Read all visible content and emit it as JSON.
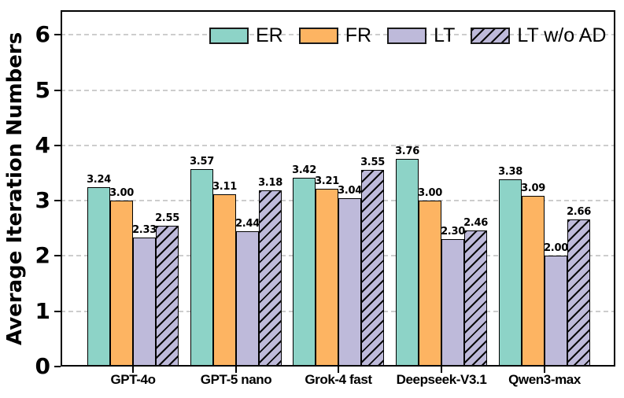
{
  "chart_data": {
    "type": "bar",
    "title": "",
    "xlabel": "",
    "ylabel": "Average Iteration Numbers",
    "categories": [
      "GPT-4o",
      "GPT-5 nano",
      "Grok-4 fast",
      "Deepseek-V3.1",
      "Qwen3-max"
    ],
    "series": [
      {
        "name": "ER",
        "color": "#8dd3c7",
        "hatch": "none",
        "values": [
          3.24,
          3.57,
          3.42,
          3.76,
          3.38
        ]
      },
      {
        "name": "FR",
        "color": "#fdb462",
        "hatch": "none",
        "values": [
          3.0,
          3.11,
          3.21,
          3.0,
          3.09
        ]
      },
      {
        "name": "LT",
        "color": "#bebada",
        "hatch": "none",
        "values": [
          2.33,
          2.44,
          3.04,
          2.3,
          2.0
        ]
      },
      {
        "name": "LT w/o AD",
        "color": "#bebada",
        "hatch": "diagonal",
        "values": [
          2.55,
          3.18,
          3.55,
          2.46,
          2.66
        ]
      }
    ],
    "value_labels": [
      [
        "3.24",
        "3.57",
        "3.42",
        "3.76",
        "3.38"
      ],
      [
        "3.00",
        "3.11",
        "3.21",
        "3.00",
        "3.09"
      ],
      [
        "2.33",
        "2.44",
        "3.04",
        "2.30",
        "2.00"
      ],
      [
        "2.55",
        "3.18",
        "3.55",
        "2.46",
        "2.66"
      ]
    ],
    "yticks": [
      0,
      1,
      2,
      3,
      4,
      5,
      6
    ],
    "ylim": [
      0,
      6.44
    ],
    "grid": "horizontal-dashed",
    "gridline_color": "#cdcdcd",
    "bar_edge_color": "#000000",
    "legend_position": "top-inside",
    "legend_frame": false
  }
}
